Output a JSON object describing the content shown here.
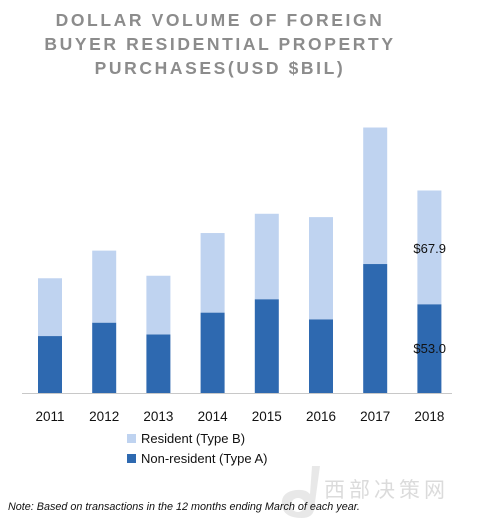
{
  "chart_data": {
    "type": "bar",
    "stacked": true,
    "title_lines": [
      "DOLLAR VOLUME OF FOREIGN",
      "BUYER RESIDENTIAL PROPERTY",
      "PURCHASES(USD $BIL)"
    ],
    "categories": [
      "2011",
      "2012",
      "2013",
      "2014",
      "2015",
      "2016",
      "2017",
      "2018"
    ],
    "series": [
      {
        "name": "Non-resident (Type A)",
        "color": "#2e69b0",
        "values": [
          34,
          42,
          35,
          48,
          56,
          44,
          77,
          53.0
        ]
      },
      {
        "name": "Resident (Type B)",
        "color": "#bfd3f0",
        "values": [
          34.5,
          43,
          35,
          47.5,
          51,
          61,
          81.5,
          67.9
        ]
      }
    ],
    "data_labels": [
      {
        "category": "2018",
        "series": "Resident (Type B)",
        "text": "$67.9"
      },
      {
        "category": "2018",
        "series": "Non-resident (Type A)",
        "text": "$53.0"
      }
    ],
    "ylim": [
      0,
      160
    ],
    "grid": false,
    "legend": "bottom-center",
    "legend_order": [
      "Resident (Type B)",
      "Non-resident (Type A)"
    ],
    "xlabel": "",
    "ylabel": ""
  },
  "note": "Note: Based on transactions in the 12 months ending March of each year.",
  "watermark": {
    "text": "西部决策网",
    "icon": "watermark-logo-icon"
  }
}
